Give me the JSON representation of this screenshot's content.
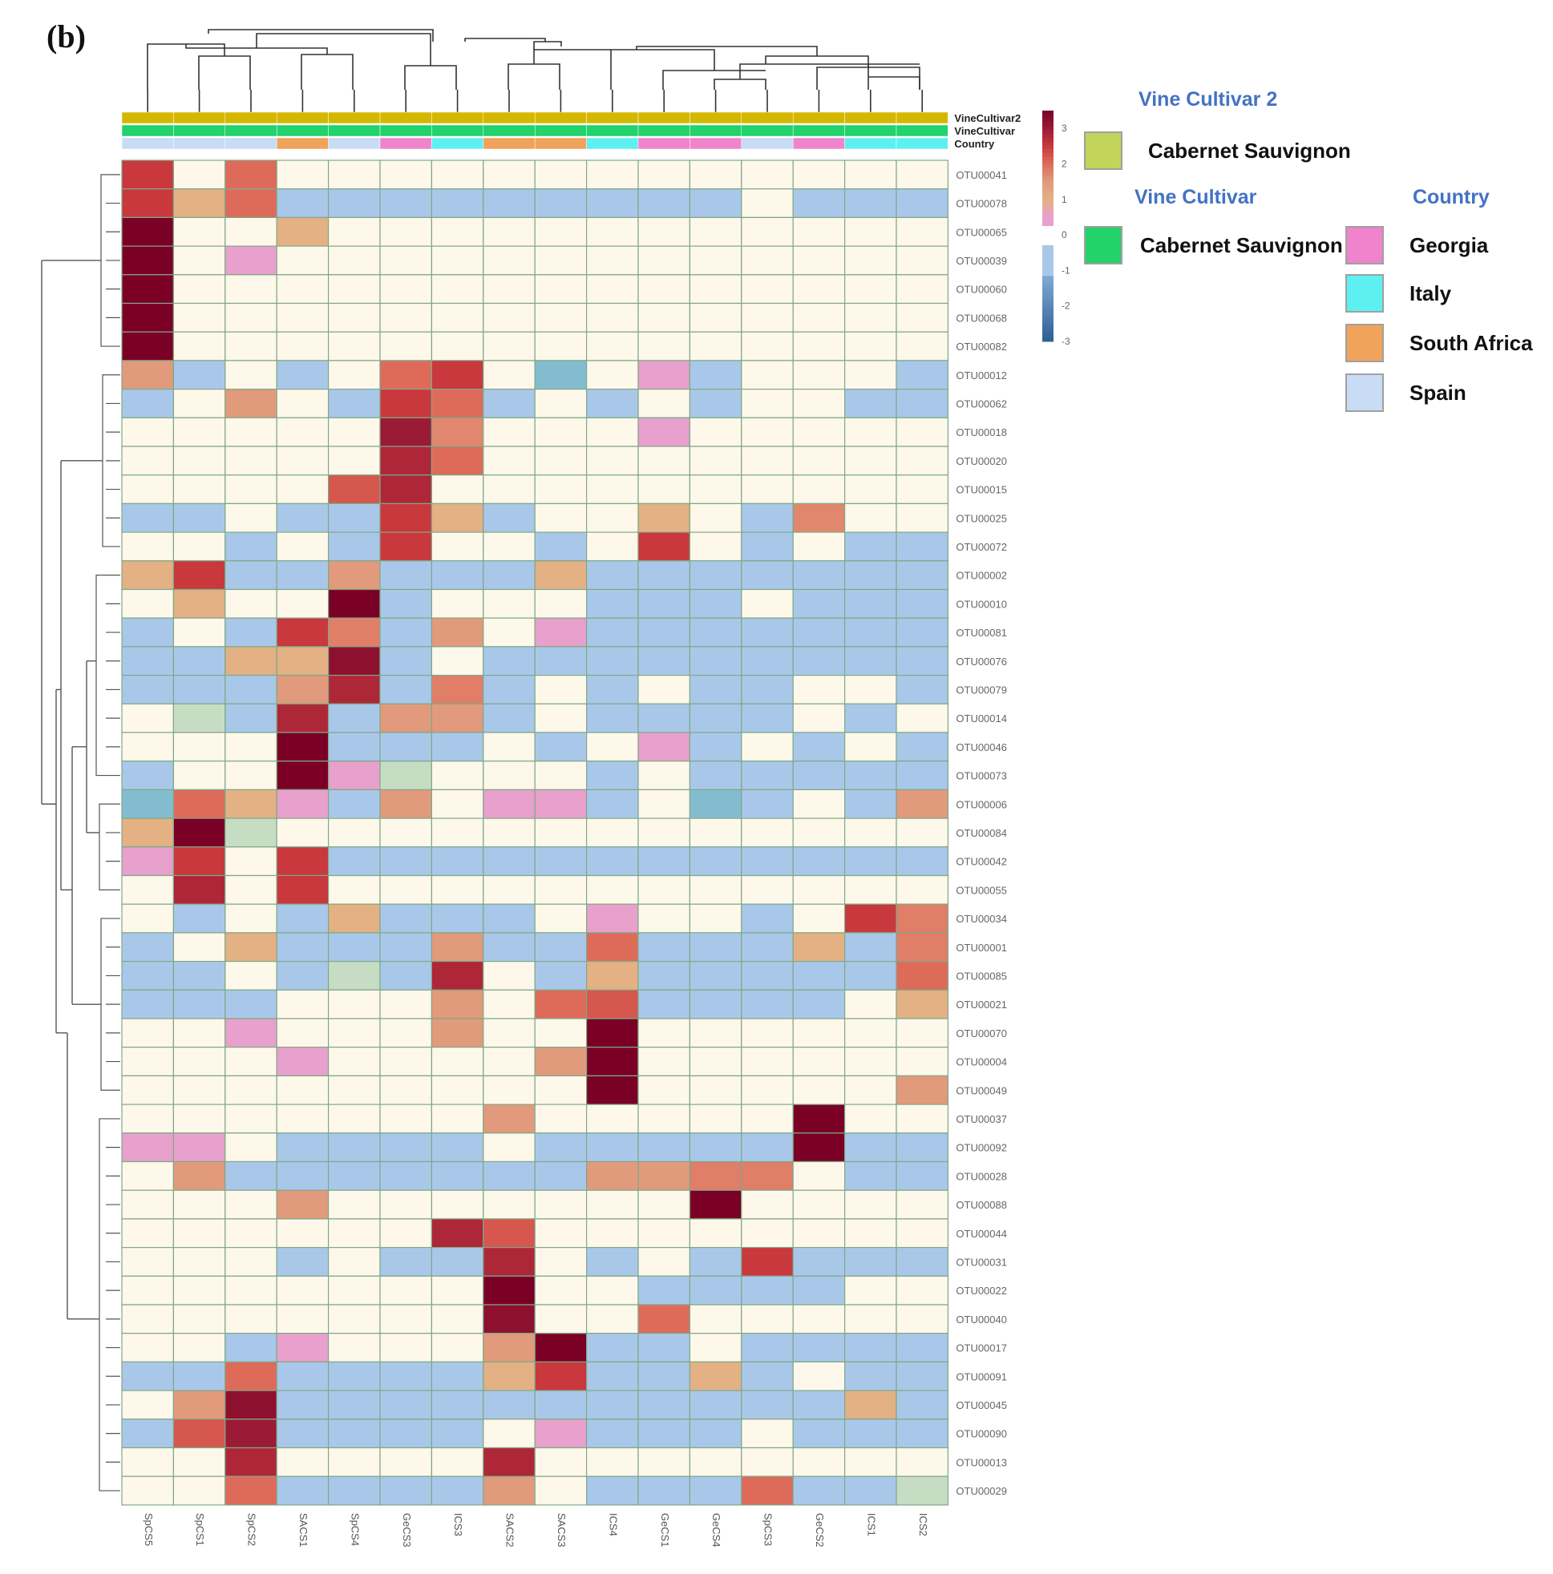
{
  "panel_label": "(b)",
  "chart_data": {
    "type": "heatmap",
    "title": "",
    "columns": [
      "SpCS5",
      "SpCS1",
      "SpCS2",
      "SACS1",
      "SpCS4",
      "GeCS3",
      "ICS3",
      "SACS2",
      "SACS3",
      "ICS4",
      "GeCS1",
      "GeCS4",
      "SpCS3",
      "GeCS2",
      "ICS1",
      "ICS2"
    ],
    "rows": [
      "OTU00041",
      "OTU00078",
      "OTU00065",
      "OTU00039",
      "OTU00060",
      "OTU00068",
      "OTU00082",
      "OTU00012",
      "OTU00062",
      "OTU00018",
      "OTU00020",
      "OTU00015",
      "OTU00025",
      "OTU00072",
      "OTU00002",
      "OTU00010",
      "OTU00081",
      "OTU00076",
      "OTU00079",
      "OTU00014",
      "OTU00046",
      "OTU00073",
      "OTU00006",
      "OTU00084",
      "OTU00042",
      "OTU00055",
      "OTU00034",
      "OTU00001",
      "OTU00085",
      "OTU00021",
      "OTU00070",
      "OTU00004",
      "OTU00049",
      "OTU00037",
      "OTU00092",
      "OTU00028",
      "OTU00088",
      "OTU00044",
      "OTU00031",
      "OTU00022",
      "OTU00040",
      "OTU00017",
      "OTU00091",
      "OTU00045",
      "OTU00090",
      "OTU00013",
      "OTU00029"
    ],
    "values": [
      [
        2.5,
        0,
        2,
        0,
        0,
        0,
        0,
        0,
        0,
        0,
        0,
        0,
        0,
        0,
        0,
        0
      ],
      [
        2.5,
        1,
        2,
        -1,
        -1,
        -1,
        -1,
        -1,
        -1,
        -1,
        -1,
        -1,
        0,
        -1,
        -1,
        -1
      ],
      [
        3.5,
        0,
        0,
        1,
        0,
        0,
        0,
        0,
        0,
        0,
        0,
        0,
        0,
        0,
        0,
        0
      ],
      [
        3.5,
        0,
        0.5,
        0,
        0,
        0,
        0,
        0,
        0,
        0,
        0,
        0,
        0,
        0,
        0,
        0
      ],
      [
        3.5,
        0,
        0,
        0,
        0,
        0,
        0,
        0,
        0,
        0,
        0,
        0,
        0,
        0,
        0,
        0
      ],
      [
        3.5,
        0,
        0,
        0,
        0,
        0,
        0,
        0,
        0,
        0,
        0,
        0,
        0,
        0,
        0,
        0
      ],
      [
        3.5,
        0,
        0,
        0,
        0,
        0,
        0,
        0,
        0,
        0,
        0,
        0,
        0,
        0,
        0,
        0
      ],
      [
        1.5,
        -1,
        0,
        -1,
        0,
        2,
        2.5,
        0,
        -1.5,
        0,
        0.5,
        -1,
        0,
        0,
        0,
        -1
      ],
      [
        -1,
        0,
        1.5,
        0,
        -1,
        2.5,
        2,
        -1,
        0,
        -1,
        0,
        -1,
        0,
        0,
        -1,
        -1
      ],
      [
        0,
        0,
        0,
        0,
        0,
        3,
        1.7,
        0,
        0,
        0,
        0.5,
        0,
        0,
        0,
        0,
        0
      ],
      [
        0,
        0,
        0,
        0,
        0,
        2.8,
        2,
        0,
        0,
        0,
        0,
        0,
        0,
        0,
        0,
        0
      ],
      [
        0,
        0,
        0,
        0,
        2.2,
        2.8,
        0,
        0,
        0,
        0,
        0,
        0,
        0,
        0,
        0,
        0
      ],
      [
        -1,
        -1,
        0,
        -1,
        -1,
        2.5,
        1,
        -1,
        0,
        0,
        1,
        0,
        -1,
        1.7,
        0,
        0
      ],
      [
        0,
        0,
        -1,
        0,
        -1,
        2.5,
        0,
        0,
        -1,
        0,
        2.5,
        0,
        -1,
        0,
        -1,
        -1
      ],
      [
        1,
        2.5,
        -1,
        -1,
        1.5,
        -1,
        -1,
        -1,
        1,
        -1,
        -1,
        -1,
        -1,
        -1,
        -1,
        -1
      ],
      [
        0,
        1,
        0,
        0,
        3.5,
        -1,
        0,
        0,
        0,
        -1,
        -1,
        -1,
        0,
        -1,
        -1,
        -1
      ],
      [
        -1,
        0,
        -1,
        2.5,
        1.8,
        -1,
        1.5,
        0,
        0.5,
        -1,
        -1,
        -1,
        -1,
        -1,
        -1,
        -1
      ],
      [
        -1,
        -1,
        1,
        1,
        3.2,
        -1,
        0,
        -1,
        -1,
        -1,
        -1,
        -1,
        -1,
        -1,
        -1,
        -1
      ],
      [
        -1,
        -1,
        -1,
        1.5,
        2.8,
        -1,
        1.8,
        -1,
        0,
        -1,
        0,
        -1,
        -1,
        0,
        0,
        -1
      ],
      [
        0,
        -0.5,
        -1,
        2.8,
        -1,
        1.5,
        1.5,
        -1,
        0,
        -1,
        -1,
        -1,
        -1,
        0,
        -1,
        0
      ],
      [
        0,
        0,
        0,
        3.5,
        -1,
        -1,
        -1,
        0,
        -1,
        0,
        0.5,
        -1,
        0,
        -1,
        0,
        -1
      ],
      [
        -1,
        0,
        0,
        3.5,
        0.5,
        -0.5,
        0,
        0,
        0,
        -1,
        0,
        -1,
        -1,
        -1,
        -1,
        -1
      ],
      [
        -1.5,
        2,
        1,
        0.5,
        -1,
        1.5,
        0,
        0.5,
        0.5,
        -1,
        0,
        -1.5,
        -1,
        0,
        -1,
        1.5
      ],
      [
        1,
        3.5,
        -0.5,
        0,
        0,
        0,
        0,
        0,
        0,
        0,
        0,
        0,
        0,
        0,
        0,
        0
      ],
      [
        0.5,
        2.5,
        0,
        2.5,
        -1,
        -1,
        -1,
        -1,
        -1,
        -1,
        -1,
        -1,
        -1,
        -1,
        -1,
        -1
      ],
      [
        0,
        2.8,
        0,
        2.5,
        0,
        0,
        0,
        0,
        0,
        0,
        0,
        0,
        0,
        0,
        0,
        0
      ],
      [
        0,
        -1,
        0,
        -1,
        1,
        -1,
        -1,
        -1,
        0,
        0.5,
        0,
        0,
        -1,
        0,
        2.5,
        1.8
      ],
      [
        -1,
        0,
        1,
        -1,
        -1,
        -1,
        1.5,
        -1,
        -1,
        2,
        -1,
        -1,
        -1,
        1,
        -1,
        1.8
      ],
      [
        -1,
        -1,
        0,
        -1,
        -0.5,
        -1,
        2.8,
        0,
        -1,
        1,
        -1,
        -1,
        -1,
        -1,
        -1,
        2
      ],
      [
        -1,
        -1,
        -1,
        0,
        0,
        0,
        1.5,
        0,
        2,
        2.2,
        -1,
        -1,
        -1,
        -1,
        0,
        1
      ],
      [
        0,
        0,
        0.5,
        0,
        0,
        0,
        1.5,
        0,
        0,
        3.5,
        0,
        0,
        0,
        0,
        0,
        0
      ],
      [
        0,
        0,
        0,
        0.5,
        0,
        0,
        0,
        0,
        1.5,
        3.5,
        0,
        0,
        0,
        0,
        0,
        0
      ],
      [
        0,
        0,
        0,
        0,
        0,
        0,
        0,
        0,
        0,
        3.5,
        0,
        0,
        0,
        0,
        0,
        1.5
      ],
      [
        0,
        0,
        0,
        0,
        0,
        0,
        0,
        1.5,
        0,
        0,
        0,
        0,
        0,
        3.5,
        0,
        0
      ],
      [
        0.5,
        0.5,
        0,
        -1,
        -1,
        -1,
        -1,
        0,
        -1,
        -1,
        -1,
        -1,
        -1,
        3.5,
        -1,
        -1
      ],
      [
        0,
        1.5,
        -1,
        -1,
        -1,
        -1,
        -1,
        -1,
        -1,
        1.5,
        1.5,
        1.8,
        1.8,
        0,
        -1,
        -1
      ],
      [
        0,
        0,
        0,
        1.5,
        0,
        0,
        0,
        0,
        0,
        0,
        0,
        3.5,
        0,
        0,
        0,
        0
      ],
      [
        0,
        0,
        0,
        0,
        0,
        0,
        2.8,
        2.2,
        0,
        0,
        0,
        0,
        0,
        0,
        0,
        0
      ],
      [
        0,
        0,
        0,
        -1,
        0,
        -1,
        -1,
        2.8,
        0,
        -1,
        0,
        -1,
        2.5,
        -1,
        -1,
        -1
      ],
      [
        0,
        0,
        0,
        0,
        0,
        0,
        0,
        3.5,
        0,
        0,
        -1,
        -1,
        -1,
        -1,
        0,
        0
      ],
      [
        0,
        0,
        0,
        0,
        0,
        0,
        0,
        3.2,
        0,
        0,
        2,
        0,
        0,
        0,
        0,
        0
      ],
      [
        0,
        0,
        -1,
        0.5,
        0,
        0,
        0,
        1.5,
        3.5,
        -1,
        -1,
        0,
        -1,
        -1,
        -1,
        -1
      ],
      [
        -1,
        -1,
        2,
        -1,
        -1,
        -1,
        -1,
        1,
        2.5,
        -1,
        -1,
        1,
        -1,
        0,
        -1,
        -1
      ],
      [
        0,
        1.5,
        3.2,
        -1,
        -1,
        -1,
        -1,
        -1,
        -1,
        -1,
        -1,
        -1,
        -1,
        -1,
        1,
        -1
      ],
      [
        -1,
        2.2,
        3,
        -1,
        -1,
        -1,
        -1,
        0,
        0.5,
        -1,
        -1,
        -1,
        0,
        -1,
        -1,
        -1
      ],
      [
        0,
        0,
        2.8,
        0,
        0,
        0,
        0,
        2.8,
        0,
        0,
        0,
        0,
        0,
        0,
        0,
        0
      ],
      [
        0,
        0,
        2,
        -1,
        -1,
        -1,
        -1,
        1.5,
        0,
        -1,
        -1,
        -1,
        2,
        -1,
        -1,
        -0.5
      ]
    ],
    "column_dendrogram_order": [
      "SpCS5",
      "SpCS1",
      "SpCS2",
      "SACS1",
      "SpCS4",
      "GeCS3",
      "ICS3",
      "SACS2",
      "SACS3",
      "ICS4",
      "GeCS1",
      "GeCS4",
      "SpCS3",
      "GeCS2",
      "ICS1",
      "ICS2"
    ],
    "annotation_rows": [
      "VineCultivar2",
      "VineCultivar",
      "Country"
    ],
    "column_country": [
      "Spain",
      "Spain",
      "Spain",
      "South Africa",
      "Spain",
      "Georgia",
      "Italy",
      "South Africa",
      "South Africa",
      "Italy",
      "Georgia",
      "Georgia",
      "Spain",
      "Georgia",
      "Italy",
      "Italy"
    ],
    "color_scale": {
      "range": [
        -3,
        3.5
      ],
      "tick_labels": [
        "3",
        "2",
        "1",
        "0",
        "-1",
        "-2",
        "-3"
      ],
      "tick_values": [
        3,
        2,
        1,
        0,
        -1,
        -2,
        -3
      ]
    }
  },
  "colors": {
    "cultivar2": "#d4b800",
    "cultivar": "#22d26a",
    "georgia": "#f084cc",
    "italy": "#5ef0f0",
    "south_africa": "#f0a35a",
    "spain": "#c8dcf5",
    "neutral": "#fdf8ea",
    "low": "#a9c8e9",
    "grid": "#7fa888"
  },
  "legend": {
    "vine_cultivar2": {
      "title": "Vine Cultivar 2",
      "items": [
        {
          "label": "Cabernet Sauvignon",
          "color": "#c3d45a"
        }
      ]
    },
    "vine_cultivar": {
      "title": "Vine Cultivar",
      "items": [
        {
          "label": "Cabernet Sauvignon",
          "color": "#22d26a"
        }
      ]
    },
    "country": {
      "title": "Country",
      "items": [
        {
          "label": "Georgia",
          "color": "#f084cc"
        },
        {
          "label": "Italy",
          "color": "#5ef0f0"
        },
        {
          "label": "South Africa",
          "color": "#f0a35a"
        },
        {
          "label": "Spain",
          "color": "#c8dcf5"
        }
      ]
    }
  }
}
